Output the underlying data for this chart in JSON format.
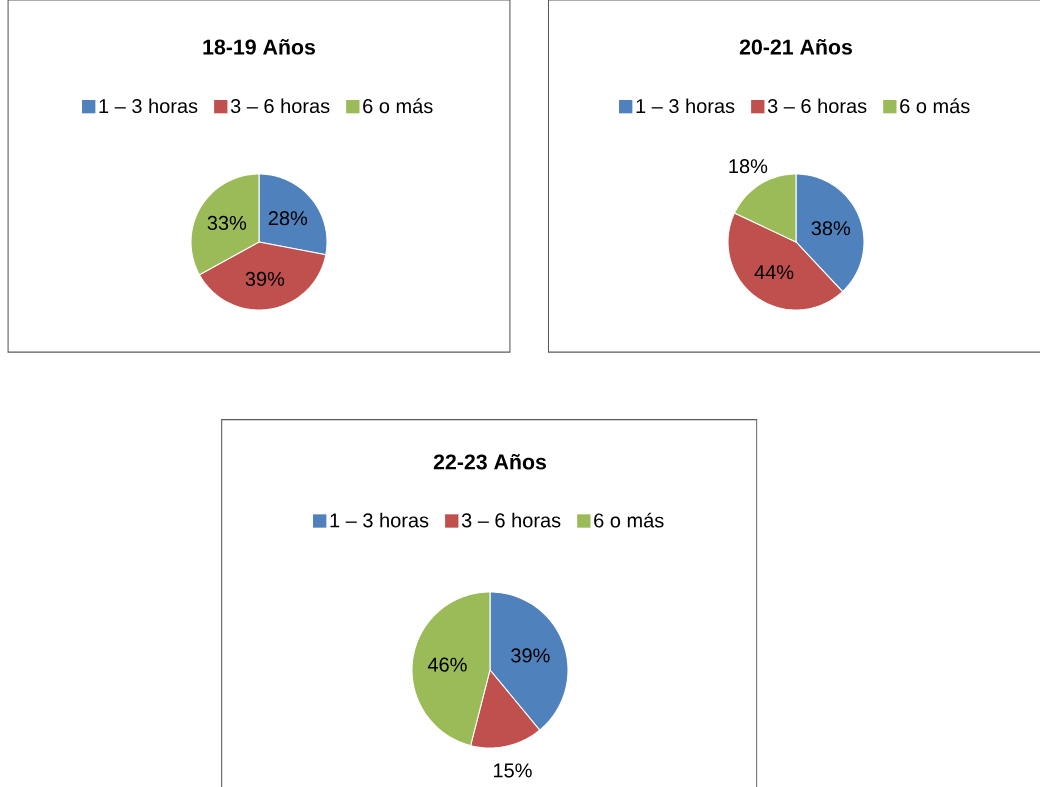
{
  "chart_data": [
    {
      "type": "pie",
      "title": "18-19 Años",
      "categories": [
        "1 – 3 horas",
        "3 – 6 horas",
        "6 o más"
      ],
      "values": [
        28,
        39,
        33
      ],
      "value_labels": [
        "28%",
        "39%",
        "33%"
      ],
      "colors": [
        "#4f81bd",
        "#c0504d",
        "#9bbb59"
      ],
      "legend": "top"
    },
    {
      "type": "pie",
      "title": "20-21 Años",
      "categories": [
        "1 – 3 horas",
        "3 – 6 horas",
        "6 o más"
      ],
      "values": [
        38,
        44,
        18
      ],
      "value_labels": [
        "38%",
        "44%",
        "18%"
      ],
      "colors": [
        "#4f81bd",
        "#c0504d",
        "#9bbb59"
      ],
      "legend": "top"
    },
    {
      "type": "pie",
      "title": "22-23 Años",
      "categories": [
        "1 – 3 horas",
        "3 – 6 horas",
        "6 o más"
      ],
      "values": [
        39,
        15,
        46
      ],
      "value_labels": [
        "39%",
        "15%",
        "46%"
      ],
      "colors": [
        "#4f81bd",
        "#c0504d",
        "#9bbb59"
      ],
      "legend": "top"
    }
  ]
}
